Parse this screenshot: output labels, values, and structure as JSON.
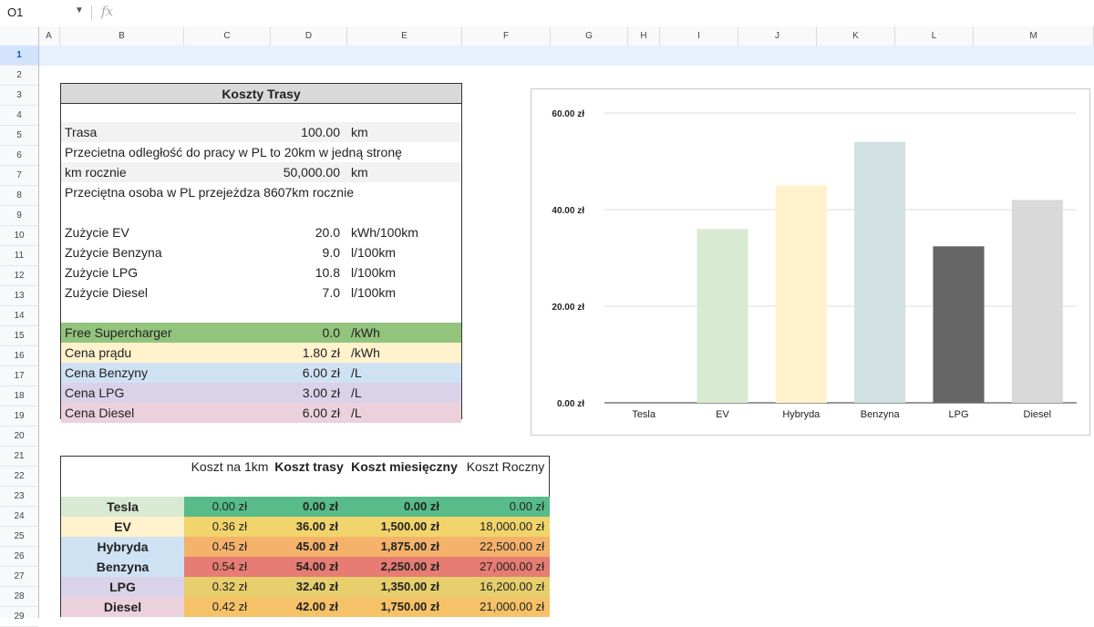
{
  "formula_bar": {
    "cell_ref": "O1",
    "fx_label": "fx"
  },
  "columns": [
    "A",
    "B",
    "C",
    "D",
    "E",
    "F",
    "G",
    "H",
    "I",
    "J",
    "K",
    "L",
    "M"
  ],
  "rows": [
    "1",
    "2",
    "3",
    "4",
    "5",
    "6",
    "7",
    "8",
    "9",
    "10",
    "11",
    "12",
    "13",
    "14",
    "15",
    "16",
    "17",
    "18",
    "19",
    "20",
    "21",
    "22",
    "23",
    "24",
    "25",
    "26",
    "27",
    "28",
    "29"
  ],
  "info_table": {
    "title": "Koszty Trasy",
    "rows": [
      {
        "label": "Trasa",
        "value": "100.00",
        "unit": "km"
      },
      {
        "label": "Przecietna odległość do pracy w PL to 20km w jedną stronę",
        "value": "",
        "unit": ""
      },
      {
        "label": "km rocznie",
        "value": "50,000.00",
        "unit": "km"
      },
      {
        "label": "Przeciętna osoba w PL przejeżdza 8607km rocznie",
        "value": "",
        "unit": ""
      },
      {
        "label": "",
        "value": "",
        "unit": ""
      },
      {
        "label": "Zużycie EV",
        "value": "20.0",
        "unit": "kWh/100km"
      },
      {
        "label": "Zużycie Benzyna",
        "value": "9.0",
        "unit": "l/100km"
      },
      {
        "label": "Zużycie LPG",
        "value": "10.8",
        "unit": "l/100km"
      },
      {
        "label": "Zużycie Diesel",
        "value": "7.0",
        "unit": "l/100km"
      },
      {
        "label": "",
        "value": "",
        "unit": ""
      },
      {
        "label": "Free Supercharger",
        "value": "0.0",
        "unit": "/kWh"
      },
      {
        "label": "Cena prądu",
        "value": "1.80 zł",
        "unit": "/kWh"
      },
      {
        "label": "Cena Benzyny",
        "value": "6.00 zł",
        "unit": "/L"
      },
      {
        "label": "Cena LPG",
        "value": "3.00 zł",
        "unit": "/L"
      },
      {
        "label": "Cena Diesel",
        "value": "6.00 zł",
        "unit": "/L"
      }
    ]
  },
  "cost_table": {
    "headers": [
      "Koszt na 1km",
      "Koszt trasy",
      "Koszt miesięczny",
      "Koszt Roczny"
    ],
    "rows": [
      {
        "name": "Tesla",
        "per_km": "0.00 zł",
        "trip": "0.00 zł",
        "monthly": "0.00 zł",
        "yearly": "0.00 zł"
      },
      {
        "name": "EV",
        "per_km": "0.36 zł",
        "trip": "36.00 zł",
        "monthly": "1,500.00 zł",
        "yearly": "18,000.00 zł"
      },
      {
        "name": "Hybryda",
        "per_km": "0.45 zł",
        "trip": "45.00 zł",
        "monthly": "1,875.00 zł",
        "yearly": "22,500.00 zł"
      },
      {
        "name": "Benzyna",
        "per_km": "0.54 zł",
        "trip": "54.00 zł",
        "monthly": "2,250.00 zł",
        "yearly": "27,000.00 zł"
      },
      {
        "name": "LPG",
        "per_km": "0.32 zł",
        "trip": "32.40 zł",
        "monthly": "1,350.00 zł",
        "yearly": "16,200.00 zł"
      },
      {
        "name": "Diesel",
        "per_km": "0.42 zł",
        "trip": "42.00 zł",
        "monthly": "1,750.00 zł",
        "yearly": "21,000.00 zł"
      }
    ],
    "colors": {
      "name_bg": [
        "#d9ead3",
        "#fff2cc",
        "#cfe2f3",
        "#cfe2f3",
        "#d9d2e9",
        "#ead1dc"
      ],
      "value_bg": [
        "#57bb8a",
        "#f1d46b",
        "#f4b26b",
        "#e67c73",
        "#e6cf6c",
        "#f5c267"
      ]
    }
  },
  "chart_data": {
    "type": "bar",
    "categories": [
      "Tesla",
      "EV",
      "Hybryda",
      "Benzyna",
      "LPG",
      "Diesel"
    ],
    "values": [
      0,
      36,
      45,
      54,
      32.4,
      42
    ],
    "colors": [
      "#ffffff",
      "#d9ead3",
      "#fff2cc",
      "#d0e0e3",
      "#666666",
      "#d9d9d9"
    ],
    "ylim": [
      0,
      60
    ],
    "ticks": [
      "0.00 zł",
      "20.00 zł",
      "40.00 zł",
      "60.00 zł"
    ],
    "tick_values": [
      0,
      20,
      40,
      60
    ],
    "grid": true,
    "title": "",
    "xlabel": "",
    "ylabel": ""
  }
}
